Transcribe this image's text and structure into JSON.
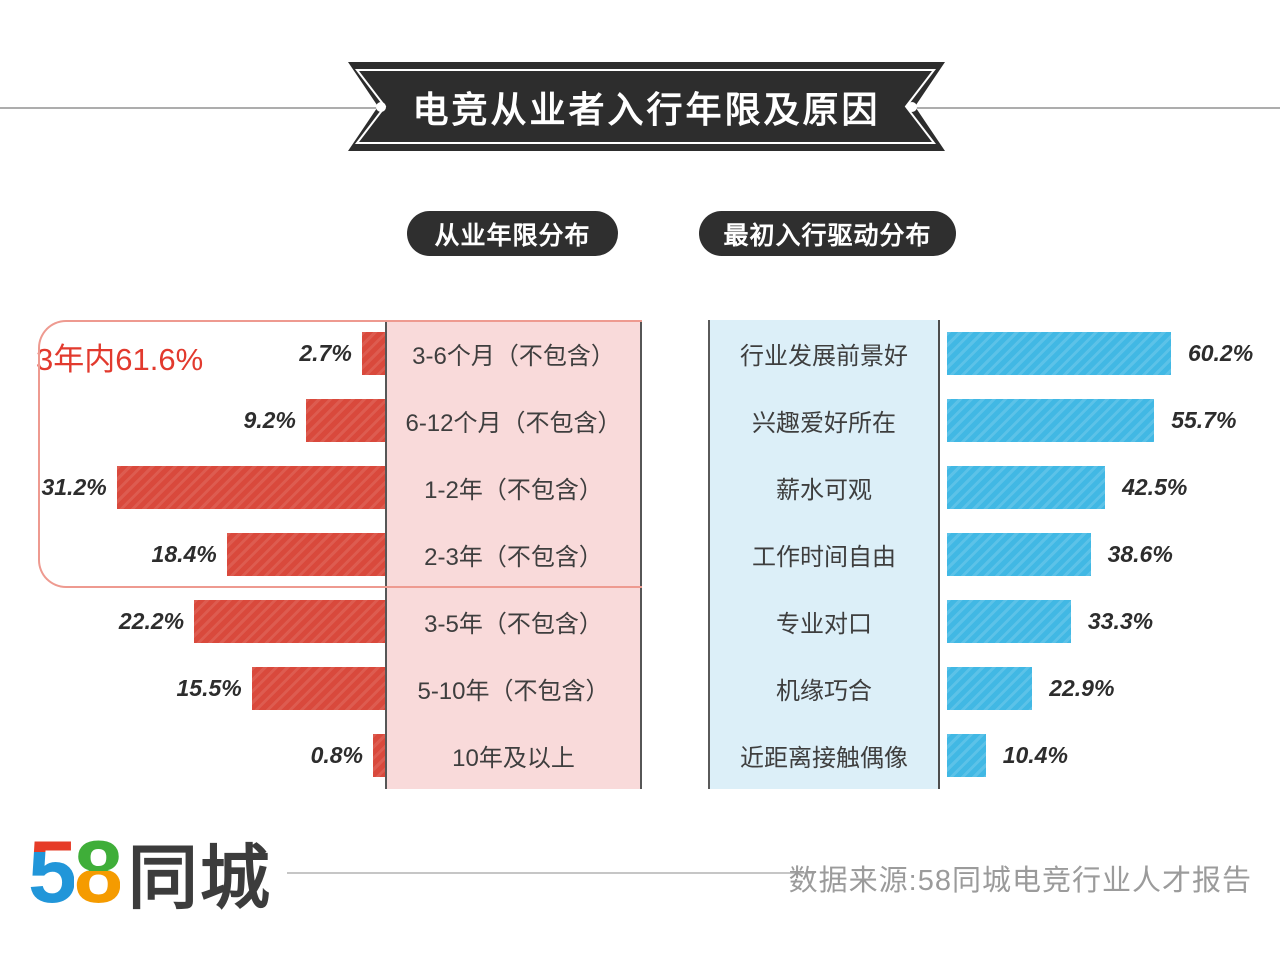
{
  "banner": {
    "title": "电竞从业者入行年限及原因"
  },
  "colors": {
    "ribbon_bg": "#2d2d2d",
    "red_bar": "#d9493c",
    "blue_bar": "#41b8e4",
    "pink_label_bg": "#f9dada",
    "blue_label_bg": "#dceff8",
    "annotation_red": "#e23a2e"
  },
  "chart_data": [
    {
      "type": "bar",
      "orientation": "horizontal-bars-extend-left",
      "title": "从业年限分布",
      "unit": "%",
      "annotation": "3年内61.6%",
      "annotation_covers_rows": [
        "3-6个月（不包含）",
        "6-12个月（不包含）",
        "1-2年（不包含）",
        "2-3年（不包含）"
      ],
      "bar_color": "#d9493c",
      "categories": [
        "3-6个月（不包含）",
        "6-12个月（不包含）",
        "1-2年（不包含）",
        "2-3年（不包含）",
        "3-5年（不包含）",
        "5-10年（不包含）",
        "10年及以上"
      ],
      "values": [
        2.7,
        9.2,
        31.2,
        18.4,
        22.2,
        15.5,
        0.8
      ],
      "rows": [
        {
          "label": "3-6个月（不包含）",
          "value": 2.7,
          "pct": "2.7%"
        },
        {
          "label": "6-12个月（不包含）",
          "value": 9.2,
          "pct": "9.2%"
        },
        {
          "label": "1-2年（不包含）",
          "value": 31.2,
          "pct": "31.2%"
        },
        {
          "label": "2-3年（不包含）",
          "value": 18.4,
          "pct": "18.4%"
        },
        {
          "label": "3-5年（不包含）",
          "value": 22.2,
          "pct": "22.2%"
        },
        {
          "label": "5-10年（不包含）",
          "value": 15.5,
          "pct": "15.5%"
        },
        {
          "label": "10年及以上",
          "value": 0.8,
          "pct": "0.8%"
        }
      ]
    },
    {
      "type": "bar",
      "orientation": "horizontal-bars-extend-right",
      "title": "最初入行驱动分布",
      "unit": "%",
      "bar_color": "#41b8e4",
      "categories": [
        "行业发展前景好",
        "兴趣爱好所在",
        "薪水可观",
        "工作时间自由",
        "专业对口",
        "机缘巧合",
        "近距离接触偶像"
      ],
      "values": [
        60.2,
        55.7,
        42.5,
        38.6,
        33.3,
        22.9,
        10.4
      ],
      "rows": [
        {
          "label": "行业发展前景好",
          "value": 60.2,
          "pct": "60.2%"
        },
        {
          "label": "兴趣爱好所在",
          "value": 55.7,
          "pct": "55.7%"
        },
        {
          "label": "薪水可观",
          "value": 42.5,
          "pct": "42.5%"
        },
        {
          "label": "工作时间自由",
          "value": 38.6,
          "pct": "38.6%"
        },
        {
          "label": "专业对口",
          "value": 33.3,
          "pct": "33.3%"
        },
        {
          "label": "机缘巧合",
          "value": 22.9,
          "pct": "22.9%"
        },
        {
          "label": "近距离接触偶像",
          "value": 10.4,
          "pct": "10.4%"
        }
      ]
    }
  ],
  "footer": {
    "logo_digit_5": "5",
    "logo_digit_8": "8",
    "logo_suffix": "同城",
    "source_text": "数据来源:58同城电竞行业人才报告"
  }
}
